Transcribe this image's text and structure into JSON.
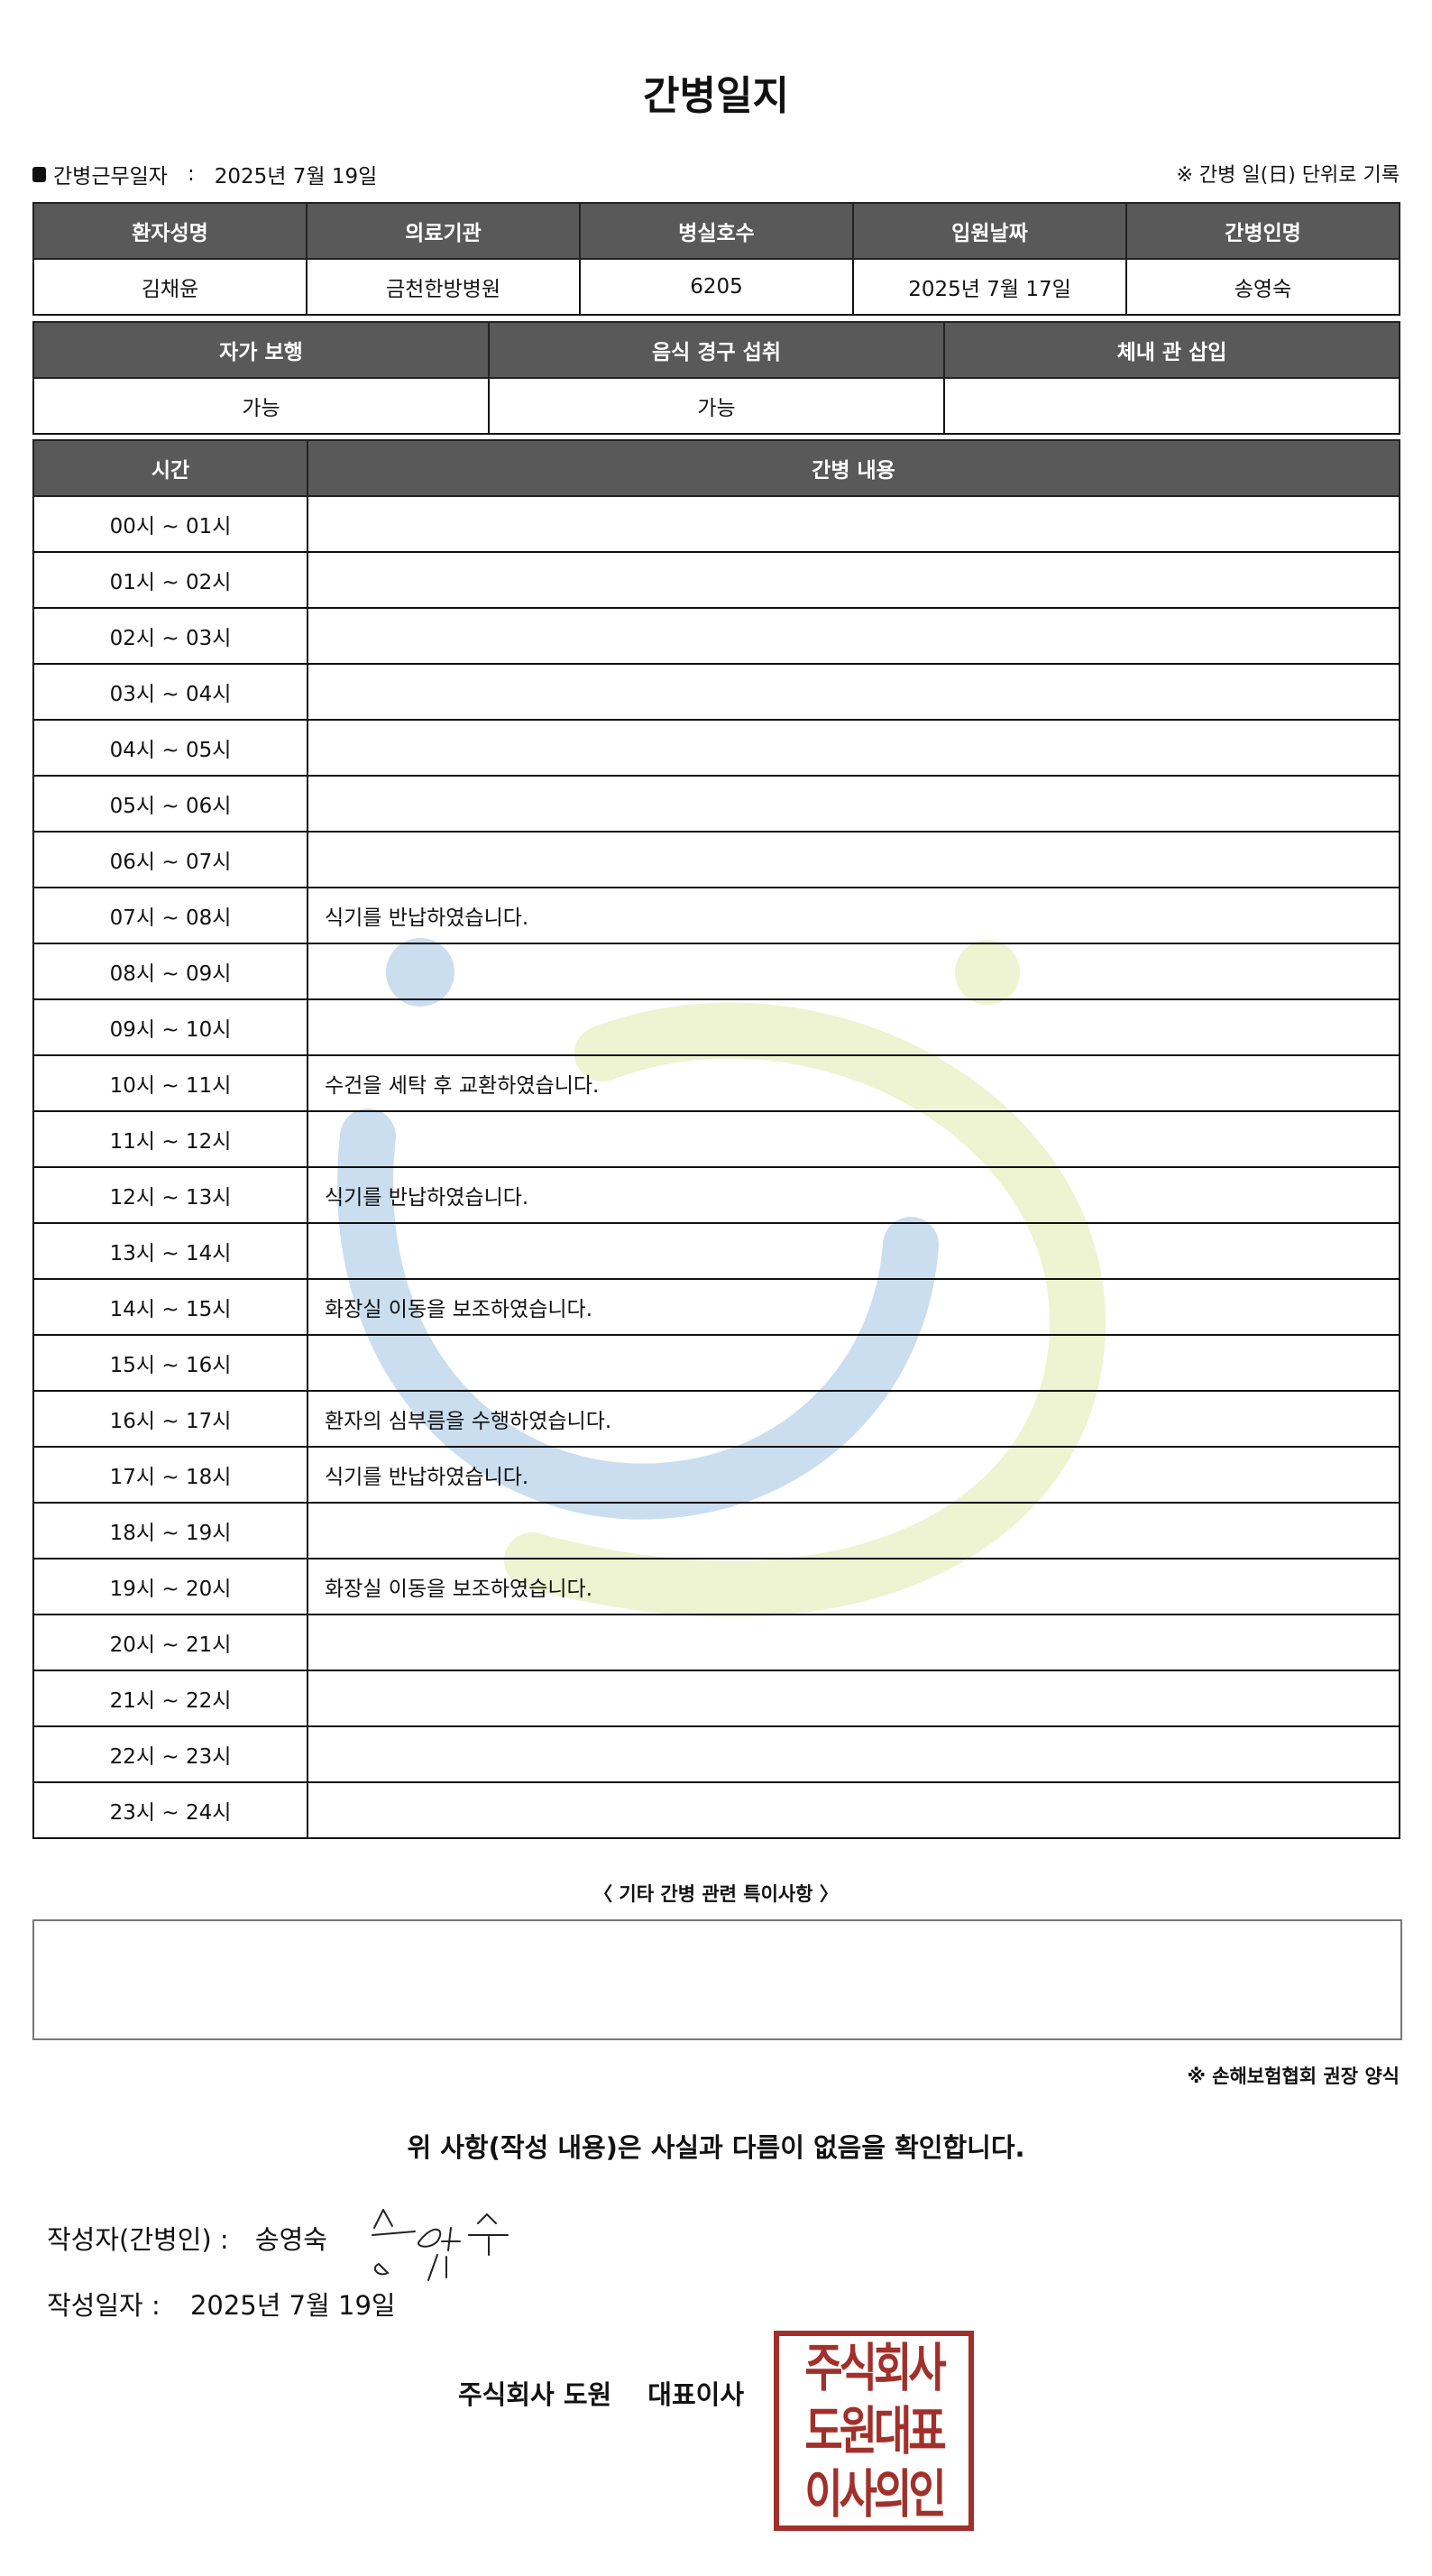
{
  "title": "간병일지",
  "work_date": {
    "label": "간병근무일자",
    "sep": ":",
    "value": "2025년 7월 19일"
  },
  "note_right": "※ 간병 일(日) 단위로 기록",
  "patient_table": {
    "headers": [
      "환자성명",
      "의료기관",
      "병실호수",
      "입원날짜",
      "간병인명"
    ],
    "values": [
      "김채윤",
      "금천한방병원",
      "6205",
      "2025년 7월 17일",
      "송영숙"
    ]
  },
  "status_table": {
    "headers": [
      "자가 보행",
      "음식 경구 섭취",
      "체내 관 삽입"
    ],
    "values": [
      "가능",
      "가능",
      ""
    ]
  },
  "log_table": {
    "headers": [
      "시간",
      "간병 내용"
    ],
    "rows": [
      {
        "time": "00시 ~ 01시",
        "content": ""
      },
      {
        "time": "01시 ~ 02시",
        "content": ""
      },
      {
        "time": "02시 ~ 03시",
        "content": ""
      },
      {
        "time": "03시 ~ 04시",
        "content": ""
      },
      {
        "time": "04시 ~ 05시",
        "content": ""
      },
      {
        "time": "05시 ~ 06시",
        "content": ""
      },
      {
        "time": "06시 ~ 07시",
        "content": ""
      },
      {
        "time": "07시 ~ 08시",
        "content": "식기를 반납하였습니다."
      },
      {
        "time": "08시 ~ 09시",
        "content": ""
      },
      {
        "time": "09시 ~ 10시",
        "content": ""
      },
      {
        "time": "10시 ~ 11시",
        "content": "수건을 세탁 후 교환하였습니다."
      },
      {
        "time": "11시 ~ 12시",
        "content": ""
      },
      {
        "time": "12시 ~ 13시",
        "content": "식기를 반납하였습니다."
      },
      {
        "time": "13시 ~ 14시",
        "content": ""
      },
      {
        "time": "14시 ~ 15시",
        "content": "화장실 이동을 보조하였습니다."
      },
      {
        "time": "15시 ~ 16시",
        "content": ""
      },
      {
        "time": "16시 ~ 17시",
        "content": "환자의 심부름을 수행하였습니다."
      },
      {
        "time": "17시 ~ 18시",
        "content": "식기를 반납하였습니다."
      },
      {
        "time": "18시 ~ 19시",
        "content": ""
      },
      {
        "time": "19시 ~ 20시",
        "content": "화장실 이동을 보조하였습니다."
      },
      {
        "time": "20시 ~ 21시",
        "content": ""
      },
      {
        "time": "21시 ~ 22시",
        "content": ""
      },
      {
        "time": "22시 ~ 23시",
        "content": ""
      },
      {
        "time": "23시 ~ 24시",
        "content": ""
      }
    ]
  },
  "notes": {
    "title": "〈 기타 간병 관련 특이사항 〉",
    "value": ""
  },
  "association_note": "※ 손해보험협회 권장 양식",
  "confirmation": "위 사항(작성 내용)은 사실과 다름이 없음을 확인합니다.",
  "writer": {
    "label": "작성자(간병인) :",
    "name": "송영숙"
  },
  "written_date": {
    "label": "작성일자 :",
    "value": "2025년 7월 19일"
  },
  "company": {
    "name": "주식회사 도원",
    "title": "대표이사"
  },
  "seal": {
    "lines": [
      "주식회사",
      "도원대표",
      "이사의인"
    ],
    "color": "#a1302b"
  },
  "colors": {
    "header_bg": "#595959",
    "watermark_blue": "#c7ddef",
    "watermark_green": "#eef3cf"
  }
}
